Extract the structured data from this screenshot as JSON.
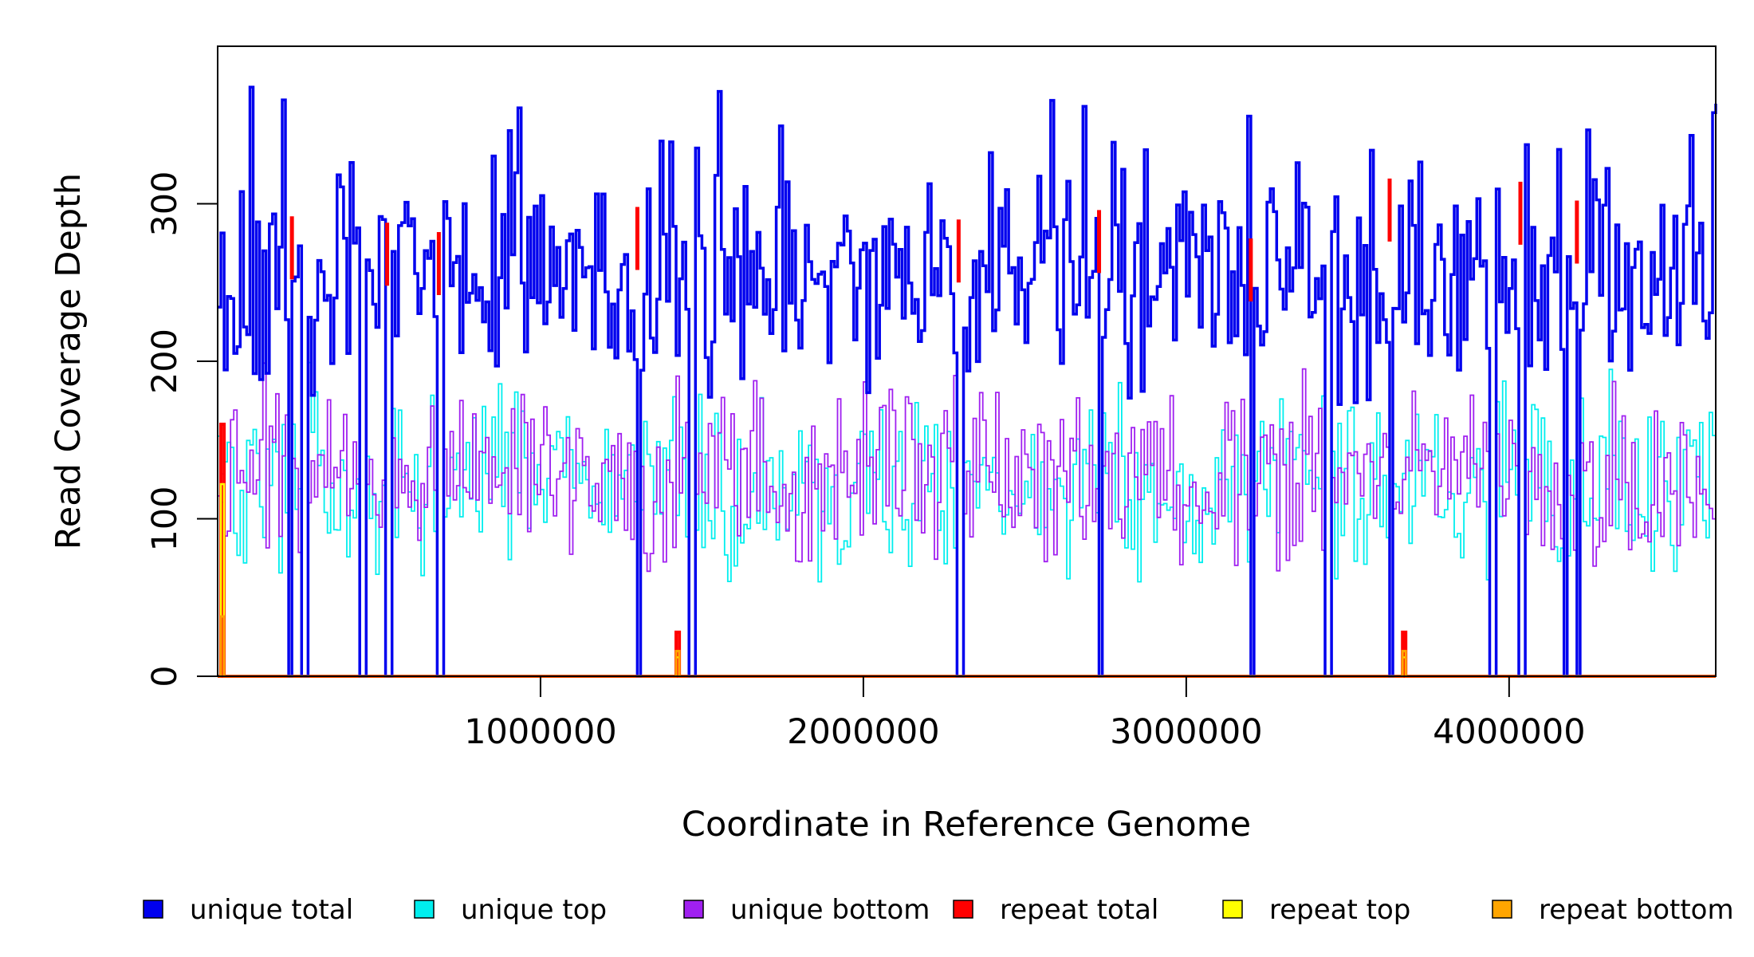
{
  "chart_data": {
    "type": "line",
    "title": "",
    "xlabel": "Coordinate in Reference Genome",
    "ylabel": "Read Coverage Depth",
    "xlim": [
      0,
      4640000
    ],
    "ylim": [
      0,
      400
    ],
    "x_ticks": [
      1000000,
      2000000,
      3000000,
      4000000
    ],
    "x_tick_labels": [
      "1000000",
      "2000000",
      "3000000",
      "4000000"
    ],
    "y_ticks": [
      0,
      100,
      200,
      300
    ],
    "y_tick_labels": [
      "0",
      "100",
      "200",
      "300"
    ],
    "bin_width": 10000,
    "grid": false,
    "legend_position": "bottom",
    "series": [
      {
        "name": "unique total",
        "color": "#0000ee",
        "style": "step",
        "typical_range": [
          170,
          390
        ],
        "mean": 255
      },
      {
        "name": "unique top",
        "color": "#00eeee",
        "style": "step",
        "typical_range": [
          60,
          205
        ],
        "mean": 125
      },
      {
        "name": "unique bottom",
        "color": "#a020f0",
        "style": "step",
        "typical_range": [
          65,
          215
        ],
        "mean": 128
      },
      {
        "name": "repeat total",
        "color": "#ff0000",
        "style": "step",
        "typical_range": [
          0,
          28
        ],
        "mean": 0
      },
      {
        "name": "repeat top",
        "color": "#ffff00",
        "style": "step",
        "typical_range": [
          0,
          15
        ],
        "mean": 0
      },
      {
        "name": "repeat bottom",
        "color": "#ffa500",
        "style": "step",
        "typical_range": [
          0,
          38
        ],
        "mean": 0
      }
    ],
    "coverage_gaps_x": [
      220000,
      265000,
      445000,
      525000,
      685000,
      1300000,
      1465000,
      2295000,
      2730000,
      3200000,
      3435000,
      3630000,
      3945000,
      4035000,
      4170000,
      4210000
    ],
    "repeat_peaks": [
      {
        "x": 10000,
        "total": 160,
        "bottom": 38
      },
      {
        "x": 1420000,
        "total": 28,
        "bottom": 16
      },
      {
        "x": 3670000,
        "total": 28,
        "bottom": 16
      }
    ],
    "red_accents": [
      {
        "x": 230000,
        "y": 292
      },
      {
        "x": 525000,
        "y": 288
      },
      {
        "x": 685000,
        "y": 282
      },
      {
        "x": 1300000,
        "y": 298
      },
      {
        "x": 2295000,
        "y": 290
      },
      {
        "x": 2730000,
        "y": 296
      },
      {
        "x": 3200000,
        "y": 278
      },
      {
        "x": 3630000,
        "y": 316
      },
      {
        "x": 4035000,
        "y": 314
      },
      {
        "x": 4210000,
        "y": 302
      }
    ]
  }
}
